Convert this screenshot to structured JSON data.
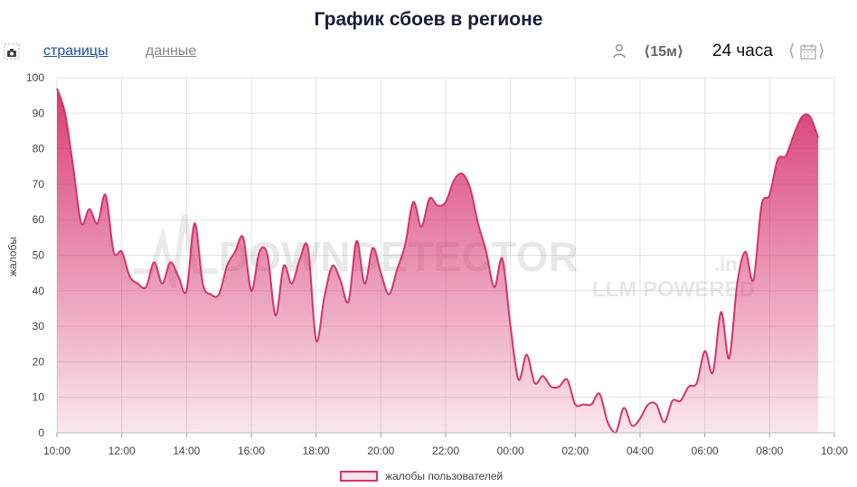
{
  "header": {
    "title": "График сбоев в регионе"
  },
  "toolbar": {
    "camera_icon": "camera-icon",
    "tab_pages": "страницы",
    "tab_data": "данные",
    "user_icon": "user-icon",
    "interval": "⟨15м⟩",
    "range": "24 часа",
    "calendar_icon": "calendar-icon",
    "nav_prev": "⟨",
    "nav_next": "⟩"
  },
  "watermark": {
    "brand": "DOWNDETECTOR",
    "suffix": ".in",
    "sub": "LLM POWERED"
  },
  "colors": {
    "accent": "#d6336c",
    "grid": "#e3e3e3"
  },
  "chart_data": {
    "type": "area",
    "ylabel": "жалобы",
    "ylim": [
      0,
      100
    ],
    "yticks": [
      0,
      10,
      20,
      30,
      40,
      50,
      60,
      70,
      80,
      90,
      100
    ],
    "xlim": [
      0,
      24
    ],
    "xticks": [
      {
        "h": 0,
        "label": "10:00"
      },
      {
        "h": 2,
        "label": "12:00"
      },
      {
        "h": 4,
        "label": "14:00"
      },
      {
        "h": 6,
        "label": "16:00"
      },
      {
        "h": 8,
        "label": "18:00"
      },
      {
        "h": 10,
        "label": "20:00"
      },
      {
        "h": 12,
        "label": "22:00"
      },
      {
        "h": 14,
        "label": "00:00"
      },
      {
        "h": 16,
        "label": "02:00"
      },
      {
        "h": 18,
        "label": "04:00"
      },
      {
        "h": 20,
        "label": "06:00"
      },
      {
        "h": 22,
        "label": "08:00"
      },
      {
        "h": 24,
        "label": "10:00"
      }
    ],
    "legend": "жалобы пользователей",
    "series": [
      {
        "name": "жалобы пользователей",
        "points": [
          [
            0.0,
            97
          ],
          [
            0.25,
            90
          ],
          [
            0.5,
            75
          ],
          [
            0.75,
            59
          ],
          [
            1.0,
            63
          ],
          [
            1.25,
            59
          ],
          [
            1.5,
            67
          ],
          [
            1.75,
            51
          ],
          [
            2.0,
            51
          ],
          [
            2.25,
            44
          ],
          [
            2.5,
            42
          ],
          [
            2.75,
            41
          ],
          [
            3.0,
            48
          ],
          [
            3.25,
            42
          ],
          [
            3.5,
            48
          ],
          [
            3.75,
            44
          ],
          [
            4.0,
            40
          ],
          [
            4.25,
            59
          ],
          [
            4.5,
            42
          ],
          [
            4.75,
            39
          ],
          [
            5.0,
            39
          ],
          [
            5.25,
            47
          ],
          [
            5.5,
            51
          ],
          [
            5.75,
            55
          ],
          [
            6.0,
            40
          ],
          [
            6.25,
            51
          ],
          [
            6.5,
            50
          ],
          [
            6.75,
            33
          ],
          [
            7.0,
            47
          ],
          [
            7.25,
            42
          ],
          [
            7.5,
            49
          ],
          [
            7.75,
            52
          ],
          [
            8.0,
            26
          ],
          [
            8.25,
            38
          ],
          [
            8.5,
            47
          ],
          [
            8.75,
            43
          ],
          [
            9.0,
            37
          ],
          [
            9.25,
            54
          ],
          [
            9.5,
            42
          ],
          [
            9.75,
            52
          ],
          [
            10.0,
            45
          ],
          [
            10.25,
            39
          ],
          [
            10.5,
            46
          ],
          [
            10.75,
            53
          ],
          [
            11.0,
            65
          ],
          [
            11.25,
            58
          ],
          [
            11.5,
            66
          ],
          [
            11.75,
            64
          ],
          [
            12.0,
            65
          ],
          [
            12.25,
            71
          ],
          [
            12.5,
            73
          ],
          [
            12.75,
            69
          ],
          [
            13.0,
            59
          ],
          [
            13.25,
            51
          ],
          [
            13.5,
            41
          ],
          [
            13.75,
            49
          ],
          [
            14.0,
            30
          ],
          [
            14.25,
            15
          ],
          [
            14.5,
            22
          ],
          [
            14.75,
            14
          ],
          [
            15.0,
            16
          ],
          [
            15.25,
            13
          ],
          [
            15.5,
            13
          ],
          [
            15.75,
            15
          ],
          [
            16.0,
            8
          ],
          [
            16.25,
            8
          ],
          [
            16.5,
            8
          ],
          [
            16.75,
            11
          ],
          [
            17.0,
            3
          ],
          [
            17.25,
            0
          ],
          [
            17.5,
            7
          ],
          [
            17.75,
            2
          ],
          [
            18.0,
            4
          ],
          [
            18.25,
            8
          ],
          [
            18.5,
            8
          ],
          [
            18.75,
            3
          ],
          [
            19.0,
            9
          ],
          [
            19.25,
            9
          ],
          [
            19.5,
            13
          ],
          [
            19.75,
            14
          ],
          [
            20.0,
            23
          ],
          [
            20.25,
            17
          ],
          [
            20.5,
            34
          ],
          [
            20.75,
            21
          ],
          [
            21.0,
            42
          ],
          [
            21.25,
            51
          ],
          [
            21.5,
            43
          ],
          [
            21.75,
            64
          ],
          [
            22.0,
            67
          ],
          [
            22.25,
            77
          ],
          [
            22.5,
            78
          ],
          [
            22.75,
            84
          ],
          [
            23.0,
            89
          ],
          [
            23.25,
            89
          ],
          [
            23.5,
            83
          ]
        ]
      }
    ]
  }
}
